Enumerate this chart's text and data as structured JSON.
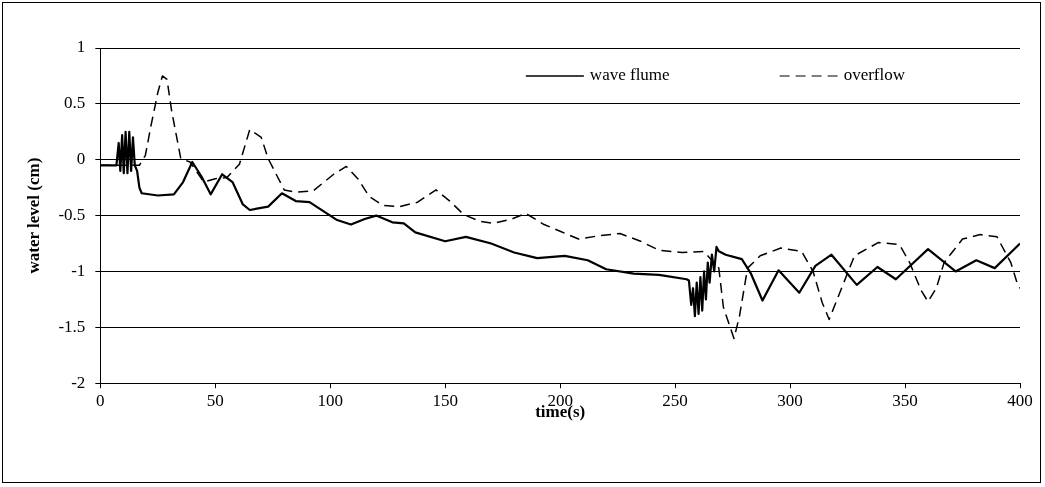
{
  "chart_data": {
    "type": "line",
    "xlabel": "time(s)",
    "ylabel": "water level (cm)",
    "xlim": [
      0,
      400
    ],
    "xticks": [
      0,
      50,
      100,
      150,
      200,
      250,
      300,
      350,
      400
    ],
    "ylim": [
      -2,
      1
    ],
    "yticks": [
      -2,
      -1.5,
      -1,
      -0.5,
      0,
      0.5,
      1
    ],
    "grid": "y",
    "legend": "top right",
    "marker": "none",
    "series": [
      {
        "name": "wave flume",
        "color": "#000000",
        "line_style": "solid",
        "x": [
          0,
          7,
          8,
          8.7,
          9.5,
          10.2,
          11,
          11.8,
          12.6,
          13.4,
          14.2,
          15,
          16,
          17,
          18,
          25,
          32,
          36,
          40,
          44,
          48,
          53,
          57.5,
          62,
          65,
          73,
          79,
          85,
          91,
          97,
          103,
          109,
          115,
          120,
          127,
          132,
          137,
          150,
          159,
          170,
          180,
          190,
          202,
          212,
          220,
          232,
          243,
          255,
          256,
          257,
          257.8,
          258.6,
          259.4,
          260.2,
          261,
          261.8,
          262.6,
          263.4,
          264.2,
          265,
          266,
          267,
          268,
          269,
          272,
          279,
          283,
          288,
          295,
          304,
          311,
          318,
          329,
          338,
          346,
          360,
          372,
          381,
          389,
          400
        ],
        "values": [
          -0.05,
          -0.05,
          0.15,
          -0.1,
          0.22,
          -0.12,
          0.25,
          -0.12,
          0.25,
          -0.1,
          0.2,
          -0.05,
          -0.1,
          -0.25,
          -0.3,
          -0.32,
          -0.31,
          -0.2,
          -0.02,
          -0.15,
          -0.31,
          -0.13,
          -0.2,
          -0.4,
          -0.45,
          -0.42,
          -0.3,
          -0.37,
          -0.38,
          -0.46,
          -0.54,
          -0.58,
          -0.53,
          -0.5,
          -0.56,
          -0.57,
          -0.65,
          -0.73,
          -0.69,
          -0.75,
          -0.83,
          -0.88,
          -0.86,
          -0.9,
          -0.98,
          -1.02,
          -1.03,
          -1.07,
          -1.08,
          -1.3,
          -1.15,
          -1.4,
          -1.1,
          -1.38,
          -1.05,
          -1.35,
          -1,
          -1.25,
          -0.92,
          -1.1,
          -0.85,
          -1,
          -0.78,
          -0.82,
          -0.85,
          -0.89,
          -1.02,
          -1.26,
          -0.99,
          -1.19,
          -0.95,
          -0.85,
          -1.12,
          -0.96,
          -1.07,
          -0.8,
          -1,
          -0.9,
          -0.97,
          -0.75
        ]
      },
      {
        "name": "overflow",
        "color": "#000000",
        "line_style": "dashed",
        "x": [
          0,
          17,
          19.6,
          22,
          25,
          27,
          29,
          31,
          35,
          39,
          45,
          50,
          55,
          60.5,
          65,
          70,
          73,
          80,
          85,
          92.5,
          101.5,
          107,
          112,
          117,
          123,
          130,
          138,
          146,
          152,
          158,
          165,
          171,
          179,
          185,
          193,
          200,
          208,
          217,
          226,
          235,
          243,
          253,
          262.5,
          269,
          271,
          275.6,
          278,
          281.5,
          287,
          296,
          305,
          310,
          314,
          317,
          322,
          328,
          338.5,
          347.6,
          352,
          357,
          360,
          363.6,
          367,
          375,
          382.7,
          390,
          396,
          399,
          400
        ],
        "values": [
          -0.05,
          -0.05,
          0.04,
          0.3,
          0.6,
          0.75,
          0.72,
          0.44,
          0.01,
          -0.02,
          -0.2,
          -0.17,
          -0.16,
          -0.04,
          0.27,
          0.2,
          0.01,
          -0.27,
          -0.29,
          -0.28,
          -0.13,
          -0.06,
          -0.17,
          -0.33,
          -0.41,
          -0.42,
          -0.38,
          -0.27,
          -0.37,
          -0.49,
          -0.55,
          -0.57,
          -0.53,
          -0.48,
          -0.58,
          -0.64,
          -0.71,
          -0.68,
          -0.66,
          -0.73,
          -0.81,
          -0.83,
          -0.82,
          -0.97,
          -1.32,
          -1.6,
          -1.4,
          -0.97,
          -0.86,
          -0.79,
          -0.82,
          -1,
          -1.28,
          -1.43,
          -1.17,
          -0.86,
          -0.74,
          -0.76,
          -0.92,
          -1.17,
          -1.27,
          -1.15,
          -0.92,
          -0.71,
          -0.67,
          -0.69,
          -0.92,
          -1.12,
          -1.15
        ]
      }
    ]
  }
}
